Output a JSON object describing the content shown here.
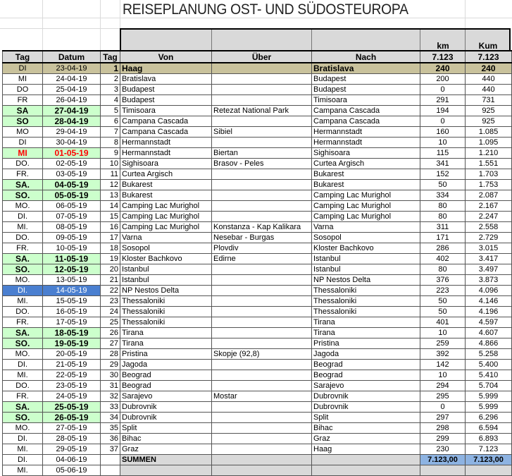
{
  "title": "REISEPLANUNG OST- UND SÜDOSTEUROPA",
  "units": {
    "km": "km",
    "kum": "Kum"
  },
  "headers": [
    "Tag",
    "Datum",
    "Tag",
    "Von",
    "Über",
    "Nach",
    "7.123",
    "7.123"
  ],
  "rows": [
    {
      "style": "first",
      "cells": [
        "DI",
        "23-04-19",
        "1",
        "Haag",
        "",
        "Bratislava",
        "240",
        "240"
      ]
    },
    {
      "style": "",
      "cells": [
        "MI",
        "24-04-19",
        "2",
        "Bratislava",
        "",
        "Budapest",
        "200",
        "440"
      ]
    },
    {
      "style": "",
      "cells": [
        "DO",
        "25-04-19",
        "3",
        "Budapest",
        "",
        "Budapest",
        "0",
        "440"
      ]
    },
    {
      "style": "",
      "cells": [
        "FR",
        "26-04-19",
        "4",
        "Budapest",
        "",
        "Timisoara",
        "291",
        "731"
      ]
    },
    {
      "style": "weekend",
      "cells": [
        "SA",
        "27-04-19",
        "5",
        "Timisoara",
        "Retezat National Park",
        "Campana Cascada",
        "194",
        "925"
      ]
    },
    {
      "style": "weekend",
      "cells": [
        "SO",
        "28-04-19",
        "6",
        "Campana Cascada",
        "",
        "Campana Cascada",
        "0",
        "925"
      ]
    },
    {
      "style": "",
      "cells": [
        "MO",
        "29-04-19",
        "7",
        "Campana Cascada",
        "Sibiel",
        "Hermannstadt",
        "160",
        "1.085"
      ]
    },
    {
      "style": "",
      "cells": [
        "DI",
        "30-04-19",
        "8",
        "Hermannstadt",
        "",
        "Hermannstadt",
        "10",
        "1.095"
      ]
    },
    {
      "style": "holiday",
      "cells": [
        "MI",
        "01-05-19",
        "9",
        "Hermannstadt",
        "Biertan",
        "Sighisoara",
        "115",
        "1.210"
      ]
    },
    {
      "style": "",
      "cells": [
        "DO.",
        "02-05-19",
        "10",
        "Sighisoara",
        "Brasov - Peles",
        "Curtea Argisch",
        "341",
        "1.551"
      ]
    },
    {
      "style": "",
      "cells": [
        "FR.",
        "03-05-19",
        "11",
        "Curtea Argisch",
        "",
        "Bukarest",
        "152",
        "1.703"
      ]
    },
    {
      "style": "weekend",
      "cells": [
        "SA.",
        "04-05-19",
        "12",
        "Bukarest",
        "",
        "Bukarest",
        "50",
        "1.753"
      ]
    },
    {
      "style": "weekend",
      "cells": [
        "SO.",
        "05-05-19",
        "13",
        "Bukarest",
        "",
        "Camping Lac Murighol",
        "334",
        "2.087"
      ]
    },
    {
      "style": "",
      "cells": [
        "MO.",
        "06-05-19",
        "14",
        "Camping Lac Murighol",
        "",
        "Camping Lac Murighol",
        "80",
        "2.167"
      ]
    },
    {
      "style": "",
      "cells": [
        "DI.",
        "07-05-19",
        "15",
        "Camping Lac Murighol",
        "",
        "Camping Lac Murighol",
        "80",
        "2.247"
      ]
    },
    {
      "style": "",
      "cells": [
        "MI.",
        "08-05-19",
        "16",
        "Camping Lac Murighol",
        "Konstanza - Kap Kalikara",
        "Varna",
        "311",
        "2.558"
      ]
    },
    {
      "style": "",
      "cells": [
        "DO.",
        "09-05-19",
        "17",
        "Varna",
        "Nesebar - Burgas",
        "Sosopol",
        "171",
        "2.729"
      ]
    },
    {
      "style": "",
      "cells": [
        "FR.",
        "10-05-19",
        "18",
        "Sosopol",
        "Plovdiv",
        "Kloster Bachkovo",
        "286",
        "3.015"
      ]
    },
    {
      "style": "weekend",
      "cells": [
        "SA.",
        "11-05-19",
        "19",
        "Kloster Bachkovo",
        "Edirne",
        "Istanbul",
        "402",
        "3.417"
      ]
    },
    {
      "style": "weekend",
      "cells": [
        "SO.",
        "12-05-19",
        "20",
        "Istanbul",
        "",
        "Istanbul",
        "80",
        "3.497"
      ]
    },
    {
      "style": "",
      "cells": [
        "MO.",
        "13-05-19",
        "21",
        "Istanbul",
        "",
        "NP Nestos Delta",
        "376",
        "3.873"
      ]
    },
    {
      "style": "selected",
      "cells": [
        "DI.",
        "14-05-19",
        "22",
        "NP Nestos Delta",
        "",
        "Thessaloniki",
        "223",
        "4.096"
      ]
    },
    {
      "style": "",
      "cells": [
        "MI.",
        "15-05-19",
        "23",
        "Thessaloniki",
        "",
        "Thessaloniki",
        "50",
        "4.146"
      ]
    },
    {
      "style": "",
      "cells": [
        "DO.",
        "16-05-19",
        "24",
        "Thessaloniki",
        "",
        "Thessaloniki",
        "50",
        "4.196"
      ]
    },
    {
      "style": "",
      "cells": [
        "FR.",
        "17-05-19",
        "25",
        "Thessaloniki",
        "",
        "Tirana",
        "401",
        "4.597"
      ]
    },
    {
      "style": "weekend",
      "cells": [
        "SA.",
        "18-05-19",
        "26",
        "Tirana",
        "",
        "Tirana",
        "10",
        "4.607"
      ]
    },
    {
      "style": "weekend",
      "cells": [
        "SO.",
        "19-05-19",
        "27",
        "Tirana",
        "",
        "Pristina",
        "259",
        "4.866"
      ]
    },
    {
      "style": "",
      "cells": [
        "MO.",
        "20-05-19",
        "28",
        "Pristina",
        "Skopje (92,8)",
        "Jagoda",
        "392",
        "5.258"
      ]
    },
    {
      "style": "",
      "cells": [
        "DI.",
        "21-05-19",
        "29",
        "Jagoda",
        "",
        "Beograd",
        "142",
        "5.400"
      ]
    },
    {
      "style": "",
      "cells": [
        "MI.",
        "22-05-19",
        "30",
        "Beograd",
        "",
        "Beograd",
        "10",
        "5.410"
      ]
    },
    {
      "style": "",
      "cells": [
        "DO.",
        "23-05-19",
        "31",
        "Beograd",
        "",
        "Sarajevo",
        "294",
        "5.704"
      ]
    },
    {
      "style": "",
      "cells": [
        "FR.",
        "24-05-19",
        "32",
        "Sarajevo",
        "Mostar",
        "Dubrovnik",
        "295",
        "5.999"
      ]
    },
    {
      "style": "weekend",
      "cells": [
        "SA.",
        "25-05-19",
        "33",
        "Dubrovnik",
        "",
        "Dubrovnik",
        "0",
        "5.999"
      ]
    },
    {
      "style": "weekend",
      "cells": [
        "SO.",
        "26-05-19",
        "34",
        "Dubrovnik",
        "",
        "Split",
        "297",
        "6.296"
      ]
    },
    {
      "style": "",
      "cells": [
        "MO.",
        "27-05-19",
        "35",
        "Split",
        "",
        "Bihac",
        "298",
        "6.594"
      ]
    },
    {
      "style": "",
      "cells": [
        "DI.",
        "28-05-19",
        "36",
        "Bihac",
        "",
        "Graz",
        "299",
        "6.893"
      ]
    },
    {
      "style": "",
      "cells": [
        "MI.",
        "29-05-19",
        "37",
        "Graz",
        "",
        "Haag",
        "230",
        "7.123"
      ]
    },
    {
      "style": "sum",
      "cells": [
        "DI.",
        "04-06-19",
        "",
        "SUMMEN",
        "",
        "",
        "7.123,00",
        "7.123,00"
      ]
    },
    {
      "style": "tail",
      "cells": [
        "MI.",
        "05-06-19",
        "",
        "",
        "",
        "",
        "",
        ""
      ]
    }
  ],
  "colors": {
    "weekend": "#ccffcc",
    "holiday_text": "#ff0000",
    "selected": "#4a7fd0",
    "first_row": "#c9c29c",
    "header": "#d9d9d9",
    "sum": "#8db3e2"
  }
}
